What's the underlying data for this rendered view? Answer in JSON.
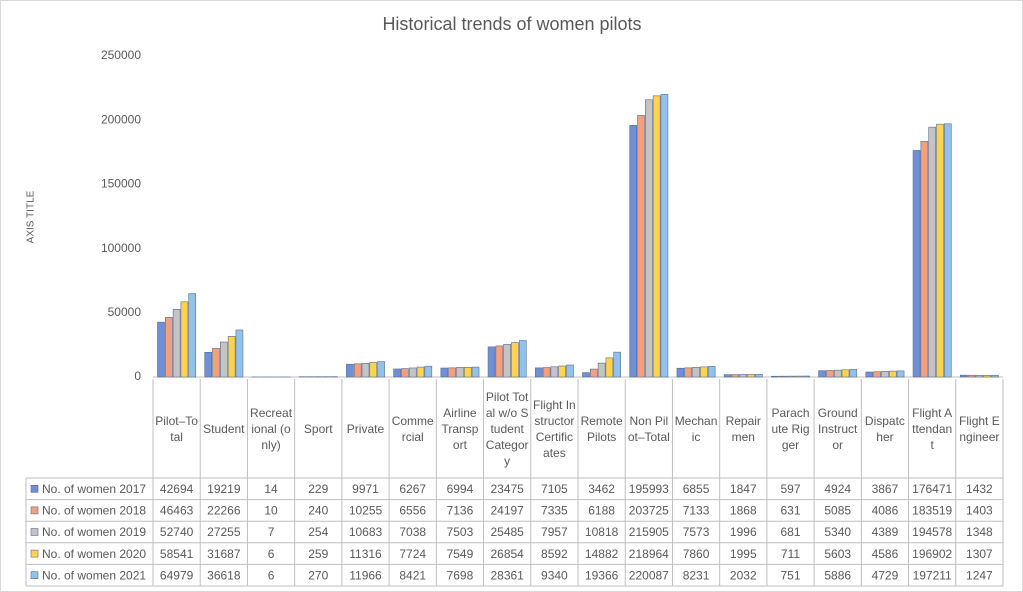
{
  "chart_data": {
    "type": "bar",
    "title": "Historical trends of women pilots",
    "y_label": "AXIS TITLE",
    "categories": [
      "Pilot–Total",
      "Student",
      "Recreational (only)",
      "Sport",
      "Private",
      "Commercial",
      "Airline Transport",
      "Pilot Total w/o Student Category",
      "Flight Instructor Certificates",
      "Remote Pilots",
      "Non Pilot–Total",
      "Mechanic",
      "Repairmen",
      "Parachute Rigger",
      "Ground Instructor",
      "Dispatcher",
      "Flight Attendant",
      "Flight Engineer"
    ],
    "series": [
      {
        "name": "No. of women 2017",
        "color": "#6f8fd6",
        "values": [
          42694,
          19219,
          14,
          229,
          9971,
          6267,
          6994,
          23475,
          7105,
          3462,
          195993,
          6855,
          1847,
          597,
          4924,
          3867,
          176471,
          1432
        ]
      },
      {
        "name": "No. of women 2018",
        "color": "#f4a07e",
        "values": [
          46463,
          22266,
          10,
          240,
          10255,
          6556,
          7136,
          24197,
          7335,
          6188,
          203725,
          7133,
          1868,
          631,
          5085,
          4086,
          183519,
          1403
        ]
      },
      {
        "name": "No. of women 2019",
        "color": "#c4c4c4",
        "values": [
          52740,
          27255,
          7,
          254,
          10683,
          7038,
          7503,
          25485,
          7957,
          10818,
          215905,
          7573,
          1996,
          681,
          5340,
          4389,
          194578,
          1348
        ]
      },
      {
        "name": "No. of women 2020",
        "color": "#ffd34e",
        "values": [
          58541,
          31687,
          6,
          259,
          11316,
          7724,
          7549,
          26854,
          8592,
          14882,
          218964,
          7860,
          1995,
          711,
          5603,
          4586,
          196902,
          1307
        ]
      },
      {
        "name": "No. of women 2021",
        "color": "#92c2ec",
        "values": [
          64979,
          36618,
          6,
          270,
          11966,
          8421,
          7698,
          28361,
          9340,
          19366,
          220087,
          8231,
          2032,
          751,
          5886,
          4729,
          197211,
          1247
        ]
      }
    ],
    "ylim": [
      0,
      250000
    ],
    "yticks": [
      0,
      50000,
      100000,
      150000,
      200000,
      250000
    ],
    "grid": false
  }
}
